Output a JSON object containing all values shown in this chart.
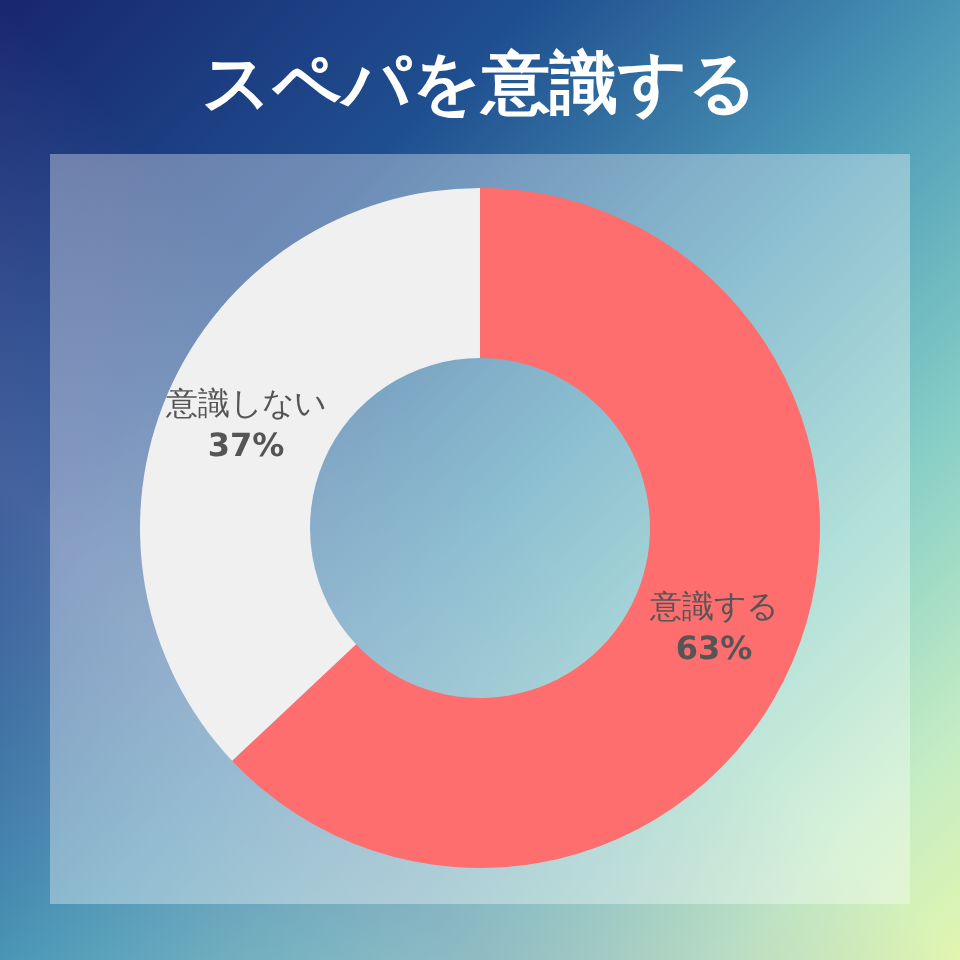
{
  "chart_data": {
    "type": "donut",
    "title": "スペパを意識する",
    "categories": [
      "意識する",
      "意識しない"
    ],
    "values": [
      63,
      37
    ],
    "value_labels": [
      "63%",
      "37%"
    ],
    "colors": [
      "#ff6e6e",
      "#f0f0f0"
    ]
  }
}
